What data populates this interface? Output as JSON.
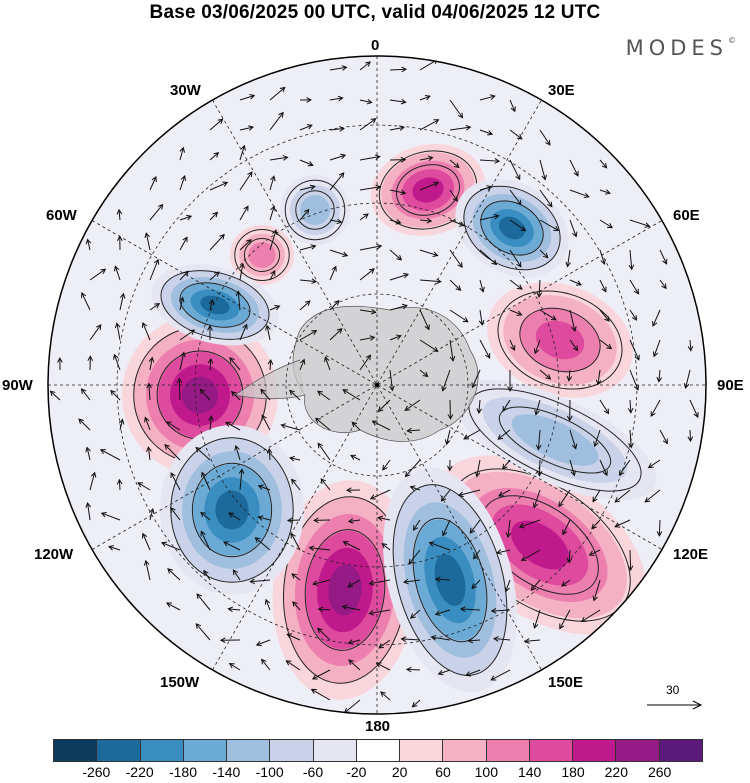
{
  "title": "Base 03/06/2025 00 UTC, valid 04/06/2025 12 UTC",
  "brand": "MODES",
  "brand_mark": "©",
  "longitude_labels": {
    "top": "0",
    "e30": "30E",
    "e60": "60E",
    "e90": "90E",
    "e120": "120E",
    "e150": "150E",
    "bottom": "180",
    "w150": "150W",
    "w120": "120W",
    "w90": "90W",
    "w60": "60W",
    "w30": "30W"
  },
  "reference_vector_label": "30",
  "colorbar": {
    "colors": [
      "#0d3b5e",
      "#1c6a9c",
      "#3a8dc0",
      "#6aaad4",
      "#a0bfde",
      "#c9d2e8",
      "#e6e6f2",
      "#ffffff",
      "#f9d6dc",
      "#f4b1c3",
      "#ed7fae",
      "#dd4a9e",
      "#c0198c",
      "#951a86",
      "#5c1a7c"
    ],
    "ticks": [
      "-260",
      "-220",
      "-180",
      "-140",
      "-100",
      "-60",
      "-20",
      "20",
      "60",
      "100",
      "140",
      "180",
      "220",
      "260"
    ]
  },
  "map_features": {
    "positive_anomalies": [
      {
        "name": "ridge-ne-upper",
        "value": 230
      },
      {
        "name": "ridge-60e-east",
        "value": 170
      },
      {
        "name": "ridge-90w",
        "value": 250
      },
      {
        "name": "ridge-180",
        "value": 260
      },
      {
        "name": "ridge-120e",
        "value": 210
      },
      {
        "name": "ridge-small-45w",
        "value": 120
      }
    ],
    "negative_anomalies": [
      {
        "name": "trough-45e",
        "value": -240
      },
      {
        "name": "trough-60w",
        "value": -240
      },
      {
        "name": "trough-135w",
        "value": -260
      },
      {
        "name": "trough-150e",
        "value": -260
      },
      {
        "name": "trough-90e-band",
        "value": -140
      },
      {
        "name": "trough-small-20w",
        "value": -140
      }
    ]
  }
}
